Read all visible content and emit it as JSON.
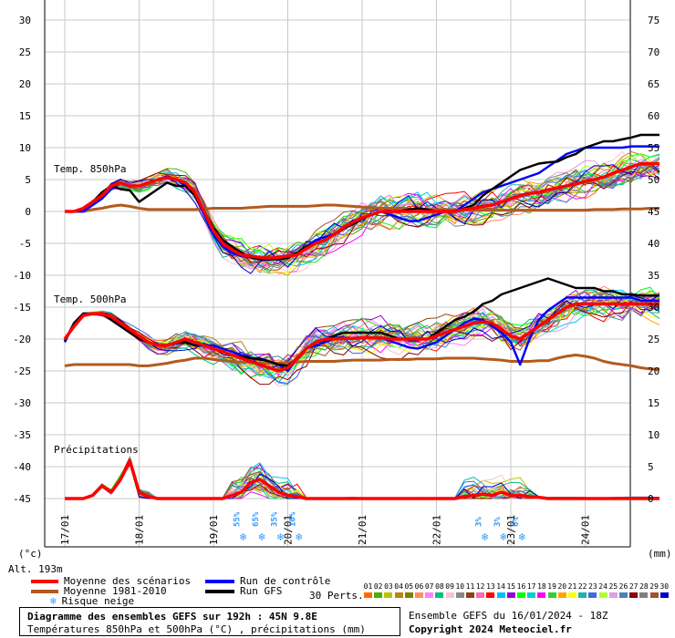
{
  "chart_data": {
    "type": "line",
    "title": "Diagramme des ensembles GEFS sur 192h : 45N 9.8E",
    "subtitle": "Températures 850hPa et 500hPa (°C) , précipitations (mm)",
    "left_axis": {
      "unit": "(°c)",
      "ticks": [
        30,
        25,
        20,
        15,
        10,
        5,
        0,
        -5,
        -10,
        -15,
        -20,
        -25,
        -30,
        -35,
        -40,
        -45
      ],
      "range": [
        -45,
        30
      ]
    },
    "right_axis": {
      "unit": "(mm)",
      "ticks": [
        75,
        70,
        65,
        60,
        55,
        50,
        45,
        40,
        35,
        30,
        25,
        20,
        15,
        10,
        5,
        0
      ],
      "range": [
        0,
        75
      ]
    },
    "x_ticks": [
      "17/01",
      "18/01",
      "19/01",
      "20/01",
      "21/01",
      "22/01",
      "23/01",
      "24/01"
    ],
    "altitude": "Alt. 193m",
    "panel_labels": {
      "t850": "Temp. 850hPa",
      "t500": "Temp. 500hPa",
      "precip": "Précipitations"
    },
    "x": [
      0,
      0.125,
      0.25,
      0.375,
      0.5,
      0.625,
      0.75,
      0.875,
      1,
      1.125,
      1.25,
      1.375,
      1.5,
      1.625,
      1.75,
      1.875,
      2,
      2.125,
      2.25,
      2.375,
      2.5,
      2.625,
      2.75,
      2.875,
      3,
      3.125,
      3.25,
      3.375,
      3.5,
      3.625,
      3.75,
      3.875,
      4,
      4.125,
      4.25,
      4.375,
      4.5,
      4.625,
      4.75,
      4.875,
      5,
      5.125,
      5.25,
      5.375,
      5.5,
      5.625,
      5.75,
      5.875,
      6,
      6.125,
      6.25,
      6.375,
      6.5,
      6.625,
      6.75,
      6.875,
      7,
      7.125,
      7.25,
      7.375,
      7.5,
      7.625,
      7.75,
      7.875,
      8
    ],
    "series": [
      {
        "name": "Moyenne des scénarios",
        "color": "#ff0000",
        "panel": "t850",
        "values": [
          0,
          0,
          0.5,
          1.5,
          2.5,
          4,
          4.5,
          4,
          4,
          4.5,
          5,
          5.3,
          5,
          4.5,
          3,
          0,
          -3,
          -5,
          -6,
          -6.8,
          -7,
          -7.2,
          -7.3,
          -7.2,
          -7,
          -6.8,
          -5.8,
          -5,
          -4.5,
          -3.6,
          -2.5,
          -1.7,
          -1,
          -0.5,
          0,
          0,
          0,
          0,
          0,
          0,
          0,
          0,
          0,
          0.3,
          0.5,
          0.8,
          1,
          1.5,
          2,
          2.5,
          2.8,
          3,
          3.4,
          3.7,
          4,
          4.3,
          4.7,
          5,
          5.4,
          6,
          6.5,
          7,
          7.5,
          7.5,
          7.5
        ]
      },
      {
        "name": "Run de contrôle",
        "color": "#0000ff",
        "panel": "t850",
        "values": [
          0,
          0,
          0,
          1,
          2,
          3.5,
          4.5,
          4,
          4,
          4.5,
          5,
          5.5,
          5,
          4,
          2.5,
          -0.5,
          -3.5,
          -5.5,
          -6.5,
          -7,
          -7.2,
          -7.5,
          -7.5,
          -7.5,
          -7,
          -6.5,
          -5.5,
          -4.5,
          -4,
          -3.5,
          -2.5,
          -1.5,
          -1,
          -0.5,
          0,
          -0.5,
          -1,
          -1.5,
          -1.5,
          -1,
          -0.5,
          0,
          0,
          1,
          2,
          3,
          3.5,
          4,
          4.5,
          5,
          5.5,
          6,
          7,
          8,
          9,
          9.5,
          10,
          10,
          10,
          10,
          10,
          10.2,
          10.2,
          10.2,
          10.2
        ]
      },
      {
        "name": "Run GFS",
        "color": "#000000",
        "panel": "t850",
        "values": [
          0,
          0,
          0.5,
          1.5,
          3,
          4,
          3.5,
          3.3,
          1.5,
          2.5,
          3.5,
          4.5,
          4,
          4,
          2.5,
          0,
          -2.5,
          -4.5,
          -5.5,
          -6.5,
          -7.2,
          -7.5,
          -7.5,
          -7.5,
          -7.3,
          -6.5,
          -5.5,
          -5,
          -4.5,
          -3.7,
          -2.7,
          -2,
          -1.2,
          -0.5,
          0,
          0,
          0,
          0.3,
          0.5,
          0.3,
          0,
          0,
          0,
          0.5,
          1,
          2.5,
          3.5,
          4.5,
          5.5,
          6.5,
          7,
          7.5,
          7.7,
          7.8,
          8.5,
          9,
          10,
          10.5,
          11,
          11,
          11.3,
          11.6,
          12,
          12,
          12
        ]
      },
      {
        "name": "Moyenne 1981-2010",
        "color": "#b35a1f",
        "panel": "t850",
        "values": [
          0,
          0,
          0,
          0.3,
          0.5,
          0.8,
          1,
          0.8,
          0.5,
          0.3,
          0.3,
          0.3,
          0.3,
          0.3,
          0.3,
          0.4,
          0.5,
          0.5,
          0.5,
          0.5,
          0.6,
          0.7,
          0.8,
          0.8,
          0.8,
          0.8,
          0.8,
          0.9,
          1,
          1,
          0.9,
          0.8,
          0.7,
          0.6,
          0.5,
          0.5,
          0.4,
          0.3,
          0.3,
          0.3,
          0.3,
          0.3,
          0.2,
          0.2,
          0.2,
          0.2,
          0.2,
          0.2,
          0.2,
          0.2,
          0.2,
          0.2,
          0.2,
          0.2,
          0.2,
          0.2,
          0.2,
          0.3,
          0.3,
          0.3,
          0.4,
          0.4,
          0.4,
          0.5,
          0.5
        ]
      },
      {
        "name": "Moyenne des scénarios",
        "color": "#ff0000",
        "panel": "t500",
        "values": [
          -20,
          -18,
          -16.3,
          -16,
          -16,
          -16.5,
          -17.5,
          -18.5,
          -19.5,
          -20.5,
          -21,
          -21,
          -20.5,
          -20,
          -20.5,
          -21,
          -21.5,
          -22,
          -22.5,
          -23,
          -23.5,
          -24,
          -24.5,
          -25,
          -24.5,
          -23,
          -21.5,
          -20.5,
          -20,
          -20,
          -19.9,
          -19.9,
          -19.8,
          -19.8,
          -19.8,
          -20,
          -20,
          -20,
          -20,
          -20,
          -19.5,
          -19,
          -18.5,
          -18,
          -17.5,
          -17.3,
          -17.5,
          -18.5,
          -19.5,
          -20,
          -19,
          -18,
          -17,
          -16,
          -15,
          -14.5,
          -14.5,
          -14.5,
          -14.5,
          -14.5,
          -14.5,
          -14.5,
          -14.5,
          -14.5,
          -14.5
        ]
      },
      {
        "name": "Run de contrôle",
        "color": "#0000ff",
        "panel": "t500",
        "values": [
          -20.5,
          -17.5,
          -16,
          -16,
          -16,
          -16.8,
          -17.5,
          -18.5,
          -19.5,
          -20.5,
          -21,
          -21,
          -20.7,
          -20.5,
          -21,
          -21,
          -21,
          -21.5,
          -22,
          -22.5,
          -23,
          -23,
          -23.5,
          -24,
          -25,
          -23,
          -21.5,
          -21,
          -20.5,
          -20,
          -20,
          -19.8,
          -19.8,
          -19.8,
          -19.8,
          -20.3,
          -20.8,
          -21.3,
          -21.5,
          -21,
          -20.5,
          -19.5,
          -18.5,
          -17.5,
          -16.8,
          -17,
          -18,
          -19,
          -20.5,
          -24,
          -20,
          -17,
          -15.5,
          -14.5,
          -13.5,
          -13.5,
          -13.5,
          -13.5,
          -13.5,
          -13.5,
          -13.5,
          -13.5,
          -14,
          -14,
          -14
        ]
      },
      {
        "name": "Run GFS",
        "color": "#000000",
        "panel": "t500",
        "values": [
          -20.3,
          -17.5,
          -16,
          -16,
          -16,
          -17,
          -18,
          -19,
          -20,
          -20.5,
          -21,
          -21,
          -20.5,
          -20.5,
          -21,
          -21,
          -21.5,
          -22,
          -22.5,
          -22.8,
          -23,
          -23.2,
          -23.5,
          -24,
          -24.2,
          -23,
          -21.5,
          -20.5,
          -20.2,
          -19.5,
          -19,
          -19,
          -19,
          -19,
          -19,
          -19.5,
          -20,
          -20,
          -20,
          -20,
          -19,
          -18,
          -17,
          -16.5,
          -15.7,
          -14.5,
          -14,
          -13,
          -12.5,
          -12,
          -11.5,
          -11,
          -10.5,
          -11,
          -11.5,
          -12,
          -12,
          -12,
          -12.5,
          -12.5,
          -13,
          -13,
          -13.2,
          -13.2,
          -13.2
        ]
      },
      {
        "name": "Moyenne 1981-2010",
        "color": "#b35a1f",
        "panel": "t500",
        "values": [
          -24.2,
          -24,
          -24,
          -24,
          -24,
          -24,
          -24,
          -24,
          -24.2,
          -24.2,
          -24,
          -23.8,
          -23.5,
          -23.3,
          -23,
          -23,
          -23.2,
          -23.4,
          -23.5,
          -23.6,
          -23.7,
          -23.8,
          -23.8,
          -23.8,
          -23.7,
          -23.6,
          -23.5,
          -23.5,
          -23.5,
          -23.5,
          -23.4,
          -23.3,
          -23.3,
          -23.3,
          -23.3,
          -23.2,
          -23.2,
          -23.2,
          -23.1,
          -23.1,
          -23.1,
          -23,
          -23,
          -23,
          -23,
          -23.1,
          -23.2,
          -23.3,
          -23.5,
          -23.5,
          -23.5,
          -23.4,
          -23.4,
          -23,
          -22.7,
          -22.5,
          -22.7,
          -23,
          -23.5,
          -23.8,
          -24,
          -24.2,
          -24.5,
          -24.7,
          -24.7
        ]
      },
      {
        "name": "Moyenne des scénarios",
        "color": "#ff0000",
        "panel": "precip",
        "values": [
          0,
          0,
          0,
          0.5,
          2,
          1,
          3,
          6,
          1,
          0.3,
          0,
          0,
          0,
          0,
          0,
          0,
          0,
          0,
          0.5,
          1,
          2.5,
          3,
          2,
          1,
          0.5,
          0.3,
          0,
          0,
          0,
          0,
          0,
          0,
          0,
          0,
          0,
          0,
          0,
          0,
          0,
          0,
          0,
          0,
          0,
          0.3,
          0.5,
          0.7,
          0.5,
          1,
          0.5,
          0.5,
          0.3,
          0.2,
          0,
          0,
          0,
          0,
          0,
          0,
          0,
          0,
          0,
          0,
          0,
          0,
          0
        ]
      }
    ],
    "snow_risk": [
      {
        "x": 2.375,
        "label": "55%"
      },
      {
        "x": 2.625,
        "label": "65%"
      },
      {
        "x": 2.875,
        "label": "35%"
      },
      {
        "x": 3.125,
        "label": "10%"
      },
      {
        "x": 5.625,
        "label": "3%"
      },
      {
        "x": 5.875,
        "label": "3%"
      },
      {
        "x": 6.125,
        "label": "6%"
      }
    ]
  },
  "legend": {
    "mean": "Moyenne des scénarios",
    "control": "Run de contrôle",
    "climo": "Moyenne 1981-2010",
    "gfs": "Run GFS",
    "snow": "Risque neige",
    "perts_label": "30 Perts.",
    "perts": [
      "01",
      "02",
      "03",
      "04",
      "05",
      "06",
      "07",
      "08",
      "09",
      "10",
      "11",
      "12",
      "13",
      "14",
      "15",
      "16",
      "17",
      "18",
      "19",
      "20",
      "21",
      "22",
      "23",
      "24",
      "25",
      "26",
      "27",
      "28",
      "29",
      "30"
    ],
    "pert_colors": [
      "#ff6a00",
      "#55aa00",
      "#c0c000",
      "#b8860b",
      "#808000",
      "#ff8c69",
      "#ff80ff",
      "#00c080",
      "#ffc0cb",
      "#888888",
      "#8b4513",
      "#ff69b4",
      "#ff0000",
      "#00bfff",
      "#9400d3",
      "#00ff00",
      "#00ced1",
      "#ff00ff",
      "#32cd32",
      "#ffa500",
      "#ffff00",
      "#20b2aa",
      "#4169e1",
      "#adff2f",
      "#dda0dd",
      "#4682b4",
      "#8b0000",
      "#808080",
      "#a0522d",
      "#0000cd"
    ]
  },
  "footer": {
    "title": "Diagramme des ensembles GEFS sur 192h : 45N 9.8E",
    "subtitle": "Températures 850hPa et 500hPa (°C) , précipitations (mm)",
    "run": "Ensemble GEFS du 16/01/2024 - 18Z",
    "copyright": "Copyright 2024 Meteociel.fr"
  }
}
